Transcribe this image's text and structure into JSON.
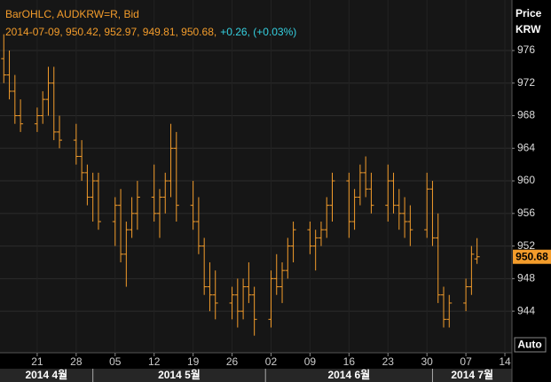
{
  "chart_data": {
    "type": "ohlc",
    "legend": "BarOHLC, AUDKRW=R, Bid",
    "last_bar": "2014-07-09, 950.42, 952.97, 949.81, 950.68,",
    "change": "+0.26, (+0.03%)",
    "axis_title": "Price",
    "axis_unit": "KRW",
    "scale_button": "Auto",
    "color": "#f39c2b",
    "change_color": "#35d0e0",
    "grid": true,
    "x": [
      "2014-04-15",
      "2014-04-16",
      "2014-04-17",
      "2014-04-18",
      "2014-04-21",
      "2014-04-22",
      "2014-04-23",
      "2014-04-24",
      "2014-04-25",
      "2014-04-28",
      "2014-04-29",
      "2014-04-30",
      "2014-05-01",
      "2014-05-02",
      "2014-05-05",
      "2014-05-06",
      "2014-05-07",
      "2014-05-08",
      "2014-05-09",
      "2014-05-12",
      "2014-05-13",
      "2014-05-14",
      "2014-05-15",
      "2014-05-16",
      "2014-05-19",
      "2014-05-20",
      "2014-05-21",
      "2014-05-22",
      "2014-05-23",
      "2014-05-26",
      "2014-05-27",
      "2014-05-28",
      "2014-05-29",
      "2014-05-30",
      "2014-06-02",
      "2014-06-03",
      "2014-06-04",
      "2014-06-05",
      "2014-06-06",
      "2014-06-09",
      "2014-06-10",
      "2014-06-11",
      "2014-06-12",
      "2014-06-13",
      "2014-06-16",
      "2014-06-17",
      "2014-06-18",
      "2014-06-19",
      "2014-06-20",
      "2014-06-23",
      "2014-06-24",
      "2014-06-25",
      "2014-06-26",
      "2014-06-27",
      "2014-06-30",
      "2014-07-01",
      "2014-07-02",
      "2014-07-03",
      "2014-07-04",
      "2014-07-07",
      "2014-07-08",
      "2014-07-09"
    ],
    "open": [
      975,
      973,
      971,
      968,
      967,
      968,
      970,
      972,
      966,
      965,
      963,
      961,
      958,
      960,
      955,
      957,
      951,
      954,
      956,
      958,
      956,
      958,
      960,
      964,
      957,
      955,
      952,
      947,
      946,
      945,
      946,
      944,
      947,
      946,
      943,
      948,
      947,
      949,
      952,
      954,
      952,
      953,
      954,
      957,
      960,
      955,
      958,
      961,
      959,
      957,
      960,
      957,
      956,
      955,
      954,
      959,
      953,
      946,
      943,
      945,
      947,
      950.42
    ],
    "high": [
      978,
      976,
      973,
      970,
      969,
      971,
      974,
      974,
      968,
      967,
      965,
      962,
      961,
      961,
      958,
      959,
      955,
      958,
      960,
      962,
      959,
      961,
      967,
      966,
      960,
      958,
      953,
      950,
      949,
      947,
      948,
      948,
      950,
      947,
      949,
      951,
      950,
      953,
      955,
      955,
      954,
      955,
      958,
      961,
      961,
      959,
      962,
      963,
      961,
      962,
      961,
      959,
      958,
      957,
      961,
      960,
      956,
      947,
      946,
      948,
      952,
      952.97
    ],
    "low": [
      972,
      970,
      967,
      966,
      966,
      967,
      968,
      965,
      964,
      962,
      960,
      957,
      955,
      954,
      952,
      950,
      947,
      953,
      954,
      955,
      953,
      956,
      958,
      955,
      954,
      951,
      946,
      944,
      943,
      943,
      942,
      943,
      945,
      941,
      942,
      946,
      945,
      948,
      950,
      951,
      949,
      952,
      953,
      955,
      953,
      954,
      957,
      958,
      956,
      955,
      956,
      954,
      953,
      952,
      953,
      952,
      945,
      942,
      942,
      944,
      946,
      949.81
    ],
    "close": [
      973,
      971,
      968,
      967,
      968,
      970,
      972,
      966,
      965,
      963,
      961,
      958,
      960,
      955,
      957,
      951,
      954,
      956,
      958,
      956,
      958,
      960,
      964,
      957,
      955,
      952,
      947,
      946,
      945,
      946,
      944,
      947,
      946,
      943,
      948,
      947,
      949,
      952,
      954,
      952,
      953,
      954,
      957,
      960,
      955,
      958,
      961,
      959,
      957,
      960,
      957,
      956,
      955,
      954,
      959,
      953,
      946,
      943,
      945,
      947,
      951,
      950.68
    ],
    "xlim": [
      "2014-04-14",
      "2014-07-15"
    ],
    "xticks": [
      {
        "value": "2014-04-21",
        "label": "21"
      },
      {
        "value": "2014-04-28",
        "label": "28"
      },
      {
        "value": "2014-05-05",
        "label": "05"
      },
      {
        "value": "2014-05-12",
        "label": "12"
      },
      {
        "value": "2014-05-19",
        "label": "19"
      },
      {
        "value": "2014-05-26",
        "label": "26"
      },
      {
        "value": "2014-06-02",
        "label": "02"
      },
      {
        "value": "2014-06-09",
        "label": "09"
      },
      {
        "value": "2014-06-16",
        "label": "16"
      },
      {
        "value": "2014-06-23",
        "label": "23"
      },
      {
        "value": "2014-06-30",
        "label": "30"
      },
      {
        "value": "2014-07-07",
        "label": "07"
      },
      {
        "value": "2014-07-14",
        "label": "14"
      }
    ],
    "months": [
      {
        "value": "2014-04",
        "label": "2014 4월"
      },
      {
        "value": "2014-05",
        "label": "2014 5월"
      },
      {
        "value": "2014-06",
        "label": "2014 6월"
      },
      {
        "value": "2014-07",
        "label": "2014 7월"
      }
    ],
    "ylim": [
      938.9,
      982.2
    ],
    "yticks": [
      944,
      948,
      952,
      956,
      960,
      964,
      968,
      972,
      976
    ]
  }
}
